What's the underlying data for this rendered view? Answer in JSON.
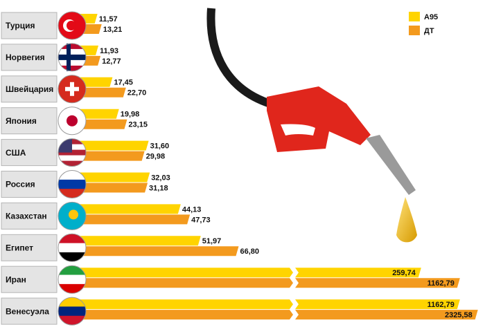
{
  "chart_data": {
    "type": "bar",
    "categories": [
      "Турция",
      "Норвегия",
      "Швейцария",
      "Япония",
      "США",
      "Россия",
      "Казахстан",
      "Египет",
      "Иран",
      "Венесуэла"
    ],
    "series": [
      {
        "name": "А95",
        "color": "#ffd400",
        "values": [
          11.57,
          11.93,
          17.45,
          19.98,
          31.6,
          32.03,
          44.13,
          51.97,
          259.74,
          1162.79
        ],
        "value_labels": [
          "11,57",
          "11,93",
          "17,45",
          "19,98",
          "31,60",
          "32,03",
          "44,13",
          "51,97",
          "259,74",
          "1162,79"
        ]
      },
      {
        "name": "ДТ",
        "color": "#f39a1e",
        "values": [
          13.21,
          12.77,
          22.7,
          23.15,
          29.98,
          31.18,
          47.73,
          66.8,
          1162.79,
          2325.58
        ],
        "value_labels": [
          "13,21",
          "12,77",
          "22,70",
          "23,15",
          "29,98",
          "31,18",
          "47,73",
          "66,80",
          "1162,79",
          "2325,58"
        ]
      }
    ],
    "legend": "top-right"
  }
}
